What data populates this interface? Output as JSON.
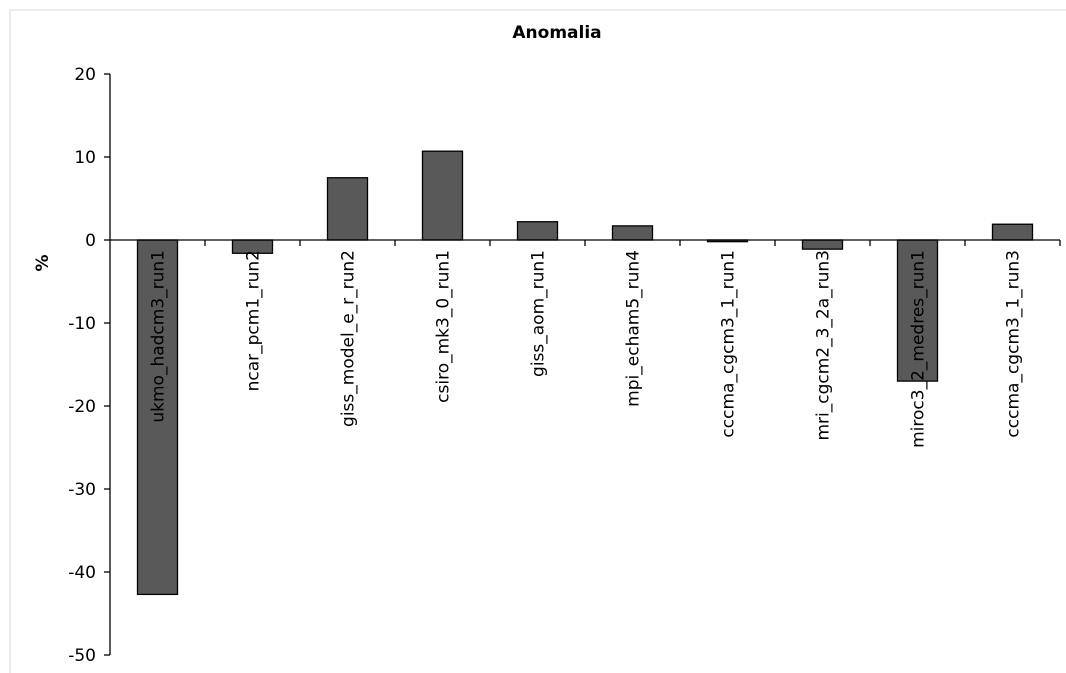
{
  "chart_data": {
    "type": "bar",
    "title": "Anomalia",
    "y_label": "%",
    "categories": [
      "ukmo_hadcm3_run1",
      "ncar_pcm1_run2",
      "giss_model_e_r_run2",
      "csiro_mk3_0_run1",
      "giss_aom_run1",
      "mpi_echam5_run4",
      "cccma_cgcm3_1_run1",
      "mri_cgcm2_3_2a_run3",
      "miroc3_2_medres_run1",
      "cccma_cgcm3_1_run3"
    ],
    "values": [
      -42.7,
      -1.6,
      7.5,
      10.7,
      2.2,
      1.7,
      -0.2,
      -1.1,
      -17.0,
      1.9
    ],
    "color": "#595959",
    "ylim": [
      -50,
      20
    ],
    "yticks": [
      -50,
      -40,
      -30,
      -20,
      -10,
      0,
      10,
      20
    ],
    "grid": false
  }
}
